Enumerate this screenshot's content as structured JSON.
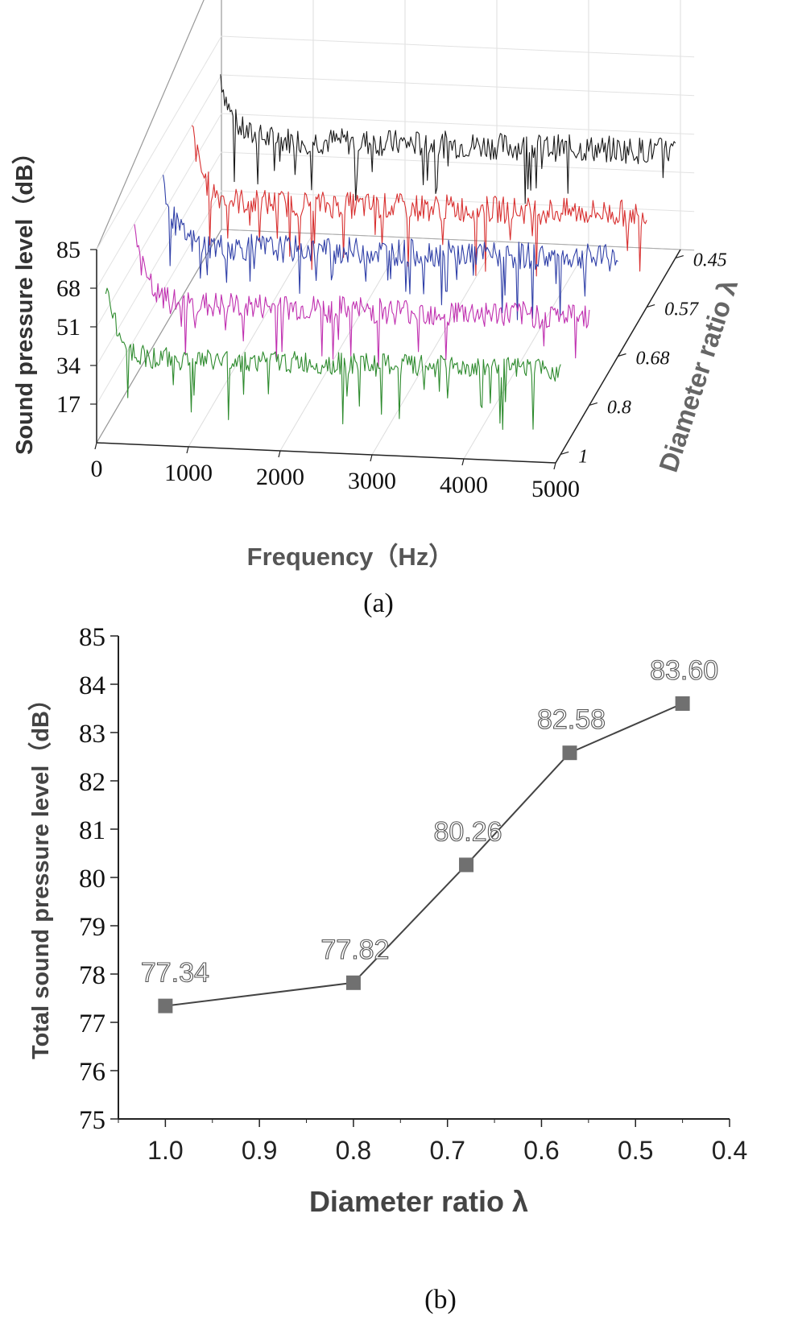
{
  "chart_data": [
    {
      "panel": "(a)",
      "type": "line",
      "title": "",
      "xlabel": "Frequency（Hz）",
      "ylabel": "Sound pressure level（dB）",
      "zlabel": "Diameter ratio λ",
      "xlim": [
        0,
        5000
      ],
      "ylim": [
        0,
        85
      ],
      "x_ticks": [
        "0",
        "1000",
        "2000",
        "3000",
        "4000",
        "5000"
      ],
      "y_ticks": [
        "17",
        "34",
        "51",
        "68",
        "85"
      ],
      "z_ticks": [
        "1",
        "0.8",
        "0.68",
        "0.57",
        "0.45"
      ],
      "series": [
        {
          "name": "1",
          "color": "#2e8b2e",
          "start_level": 85,
          "floor_level": 34,
          "noise": 5
        },
        {
          "name": "0.8",
          "color": "#c030b0",
          "start_level": 85,
          "floor_level": 36,
          "noise": 6
        },
        {
          "name": "0.68",
          "color": "#3040a8",
          "start_level": 85,
          "floor_level": 40,
          "noise": 6
        },
        {
          "name": "0.57",
          "color": "#d83030",
          "start_level": 85,
          "floor_level": 38,
          "noise": 6
        },
        {
          "name": "0.45",
          "color": "#1a1a1a",
          "start_level": 85,
          "floor_level": 44,
          "noise": 6
        }
      ]
    },
    {
      "panel": "(b)",
      "type": "line",
      "title": "",
      "xlabel": "Diameter ratio λ",
      "ylabel": "Total sound pressure level（dB）",
      "x": [
        1.0,
        0.8,
        0.68,
        0.57,
        0.45
      ],
      "values": [
        77.34,
        77.82,
        80.26,
        82.58,
        83.6
      ],
      "labels": [
        "77.34",
        "77.82",
        "80.26",
        "82.58",
        "83.60"
      ],
      "xlim": [
        1.05,
        0.4
      ],
      "ylim": [
        75,
        85
      ],
      "x_ticks": [
        "1.0",
        "0.9",
        "0.8",
        "0.7",
        "0.6",
        "0.5",
        "0.4"
      ],
      "y_ticks": [
        "75",
        "76",
        "77",
        "78",
        "79",
        "80",
        "81",
        "82",
        "83",
        "84",
        "85"
      ],
      "marker_color": "#707070"
    }
  ],
  "captions": {
    "a": "(a)",
    "b": "(b)"
  }
}
